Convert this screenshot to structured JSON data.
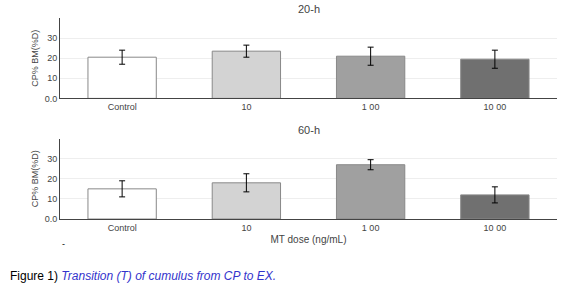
{
  "chart_data": [
    {
      "type": "bar",
      "title": "20-h",
      "ylabel": "CP% BM(%D)",
      "categories": [
        "Control",
        "10",
        "1 00",
        "10 00"
      ],
      "values": [
        20.5,
        23.5,
        21.0,
        19.5
      ],
      "errors": [
        3.5,
        3.0,
        4.5,
        4.5
      ],
      "colors": [
        "#ffffff",
        "#d3d3d3",
        "#a0a0a0",
        "#707070"
      ],
      "ylim": [
        0,
        40
      ],
      "yticks": [
        {
          "value": 0.0,
          "label": "0.0"
        },
        10,
        20,
        30
      ]
    },
    {
      "type": "bar",
      "title": "60-h",
      "ylabel": "CP% BM(%D)",
      "xlabel": "MT dose (ng/mL)",
      "categories": [
        "Control",
        "10",
        "1 00",
        "10 00"
      ],
      "values": [
        15.0,
        18.0,
        27.0,
        12.0
      ],
      "errors": [
        4.0,
        4.5,
        2.5,
        4.0
      ],
      "colors": [
        "#ffffff",
        "#d3d3d3",
        "#a0a0a0",
        "#707070"
      ],
      "ylim": [
        0,
        40
      ],
      "yticks": [
        {
          "value": 0.0,
          "label": "0.0"
        },
        10,
        20,
        30
      ],
      "annotations": [
        {
          "text": "-"
        },
        {
          "text": "Figure 1) "
        },
        {
          "text": "Transition (T) of cumulus from CP to EX.",
          "color": "#3333cc"
        }
      ]
    }
  ]
}
